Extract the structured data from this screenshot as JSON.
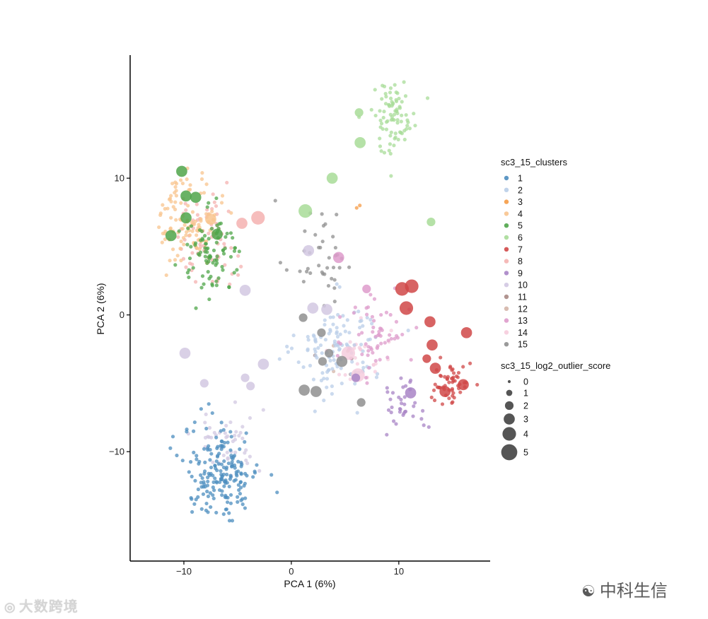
{
  "chart_data": {
    "type": "scatter",
    "xlabel": "PCA 1 (6%)",
    "ylabel": "PCA 2 (6%)",
    "xlim": [
      -15,
      18.5
    ],
    "ylim": [
      -18,
      19
    ],
    "x_ticks": [
      -10,
      0,
      10
    ],
    "x_tick_labels": [
      "−10",
      "0",
      "10"
    ],
    "y_ticks": [
      -10,
      0,
      10
    ],
    "y_tick_labels": [
      "−10",
      "0",
      "10"
    ],
    "grid": false,
    "legend_position": "right",
    "color_legend_title": "sc3_15_clusters",
    "size_legend_title": "sc3_15_log2_outlier_score",
    "size_legend_values": [
      "0",
      "1",
      "2",
      "3",
      "4",
      "5"
    ],
    "clusters": [
      {
        "name": "1",
        "color": "#4C8DBF",
        "center": [
          -6.5,
          -11.5
        ],
        "spread": [
          3.2,
          3.0
        ],
        "n": 190
      },
      {
        "name": "2",
        "color": "#B9CEE8",
        "center": [
          4.5,
          -2.5
        ],
        "spread": [
          3.6,
          3.2
        ],
        "n": 120
      },
      {
        "name": "3",
        "color": "#F59B45",
        "center": [
          6.0,
          8.0
        ],
        "spread": [
          0.4,
          0.4
        ],
        "n": 2
      },
      {
        "name": "4",
        "color": "#F8C48E",
        "center": [
          -9.5,
          7.0
        ],
        "spread": [
          2.5,
          3.0
        ],
        "n": 110
      },
      {
        "name": "5",
        "color": "#4FA54A",
        "center": [
          -7.5,
          4.5
        ],
        "spread": [
          2.6,
          2.6
        ],
        "n": 90
      },
      {
        "name": "6",
        "color": "#A8DC98",
        "center": [
          9.5,
          14.5
        ],
        "spread": [
          2.0,
          2.4
        ],
        "n": 85
      },
      {
        "name": "7",
        "color": "#D04848",
        "center": [
          15.0,
          -5.0
        ],
        "spread": [
          1.6,
          1.4
        ],
        "n": 55
      },
      {
        "name": "8",
        "color": "#F4B2B0",
        "center": [
          -8.0,
          5.5
        ],
        "spread": [
          2.6,
          3.0
        ],
        "n": 70
      },
      {
        "name": "9",
        "color": "#A884C6",
        "center": [
          10.5,
          -6.5
        ],
        "spread": [
          2.0,
          1.8
        ],
        "n": 35
      },
      {
        "name": "10",
        "color": "#D2C8E2",
        "center": [
          -6.0,
          -9.0
        ],
        "spread": [
          3.0,
          2.4
        ],
        "n": 45
      },
      {
        "name": "11",
        "color": "#A88884",
        "center": [
          4.0,
          -3.5
        ],
        "spread": [
          1.5,
          1.5
        ],
        "n": 3
      },
      {
        "name": "12",
        "color": "#D4B5A8",
        "center": [
          4.0,
          -3.0
        ],
        "spread": [
          1.5,
          1.5
        ],
        "n": 3
      },
      {
        "name": "13",
        "color": "#DE9BCB",
        "center": [
          8.0,
          -1.5
        ],
        "spread": [
          2.6,
          3.2
        ],
        "n": 60
      },
      {
        "name": "14",
        "color": "#F6CCDD",
        "center": [
          6.5,
          -3.0
        ],
        "spread": [
          2.5,
          2.0
        ],
        "n": 25
      },
      {
        "name": "15",
        "color": "#8F8F8F",
        "center": [
          2.5,
          4.5
        ],
        "spread": [
          3.0,
          3.6
        ],
        "n": 40
      }
    ],
    "outliers": [
      {
        "cluster": "5",
        "x": -10.2,
        "y": 10.5,
        "score": 3
      },
      {
        "cluster": "5",
        "x": -9.8,
        "y": 8.7,
        "score": 3
      },
      {
        "cluster": "5",
        "x": -8.9,
        "y": 8.6,
        "score": 3
      },
      {
        "cluster": "5",
        "x": -9.8,
        "y": 7.1,
        "score": 3
      },
      {
        "cluster": "5",
        "x": -11.2,
        "y": 5.8,
        "score": 3
      },
      {
        "cluster": "5",
        "x": -6.9,
        "y": 5.9,
        "score": 3
      },
      {
        "cluster": "4",
        "x": -7.5,
        "y": 7.0,
        "score": 3
      },
      {
        "cluster": "8",
        "x": -4.6,
        "y": 6.7,
        "score": 3
      },
      {
        "cluster": "8",
        "x": -3.1,
        "y": 7.1,
        "score": 4
      },
      {
        "cluster": "6",
        "x": 6.3,
        "y": 14.8,
        "score": 2
      },
      {
        "cluster": "6",
        "x": 6.4,
        "y": 12.6,
        "score": 3
      },
      {
        "cluster": "6",
        "x": 3.8,
        "y": 10.0,
        "score": 3
      },
      {
        "cluster": "6",
        "x": 1.3,
        "y": 7.6,
        "score": 4
      },
      {
        "cluster": "6",
        "x": 13.0,
        "y": 6.8,
        "score": 2
      },
      {
        "cluster": "7",
        "x": 10.3,
        "y": 1.9,
        "score": 4
      },
      {
        "cluster": "7",
        "x": 11.2,
        "y": 2.1,
        "score": 4
      },
      {
        "cluster": "7",
        "x": 10.7,
        "y": 0.5,
        "score": 4
      },
      {
        "cluster": "7",
        "x": 12.9,
        "y": -0.5,
        "score": 3
      },
      {
        "cluster": "7",
        "x": 16.3,
        "y": -1.3,
        "score": 3
      },
      {
        "cluster": "7",
        "x": 13.1,
        "y": -2.2,
        "score": 3
      },
      {
        "cluster": "7",
        "x": 12.6,
        "y": -3.2,
        "score": 2
      },
      {
        "cluster": "7",
        "x": 13.4,
        "y": -3.9,
        "score": 3
      },
      {
        "cluster": "7",
        "x": 14.3,
        "y": -5.6,
        "score": 3
      },
      {
        "cluster": "7",
        "x": 16.0,
        "y": -5.1,
        "score": 3
      },
      {
        "cluster": "10",
        "x": 1.6,
        "y": 4.7,
        "score": 3
      },
      {
        "cluster": "10",
        "x": -4.3,
        "y": 1.8,
        "score": 3
      },
      {
        "cluster": "10",
        "x": 2.0,
        "y": 0.5,
        "score": 3
      },
      {
        "cluster": "10",
        "x": 3.3,
        "y": 0.4,
        "score": 3
      },
      {
        "cluster": "10",
        "x": -9.9,
        "y": -2.8,
        "score": 3
      },
      {
        "cluster": "10",
        "x": -2.6,
        "y": -3.6,
        "score": 3
      },
      {
        "cluster": "10",
        "x": -4.3,
        "y": -4.6,
        "score": 2
      },
      {
        "cluster": "10",
        "x": -8.1,
        "y": -5.0,
        "score": 2
      },
      {
        "cluster": "10",
        "x": -3.8,
        "y": -5.2,
        "score": 2
      },
      {
        "cluster": "13",
        "x": 4.4,
        "y": 4.2,
        "score": 3
      },
      {
        "cluster": "13",
        "x": 7.0,
        "y": 1.9,
        "score": 2
      },
      {
        "cluster": "14",
        "x": 5.3,
        "y": -2.8,
        "score": 4
      },
      {
        "cluster": "14",
        "x": 6.2,
        "y": -4.4,
        "score": 4
      },
      {
        "cluster": "9",
        "x": 11.1,
        "y": -5.7,
        "score": 3
      },
      {
        "cluster": "9",
        "x": 6.0,
        "y": -4.6,
        "score": 2
      },
      {
        "cluster": "15",
        "x": 1.1,
        "y": -0.2,
        "score": 2
      },
      {
        "cluster": "15",
        "x": 2.8,
        "y": -1.3,
        "score": 2
      },
      {
        "cluster": "15",
        "x": 3.5,
        "y": -2.8,
        "score": 2
      },
      {
        "cluster": "15",
        "x": 2.9,
        "y": -3.4,
        "score": 2
      },
      {
        "cluster": "15",
        "x": 4.7,
        "y": -3.4,
        "score": 3
      },
      {
        "cluster": "15",
        "x": 1.2,
        "y": -5.5,
        "score": 3
      },
      {
        "cluster": "15",
        "x": 2.3,
        "y": -5.6,
        "score": 3
      },
      {
        "cluster": "15",
        "x": 6.5,
        "y": -6.4,
        "score": 2
      }
    ]
  },
  "watermarks": {
    "left": "大数跨境",
    "left_icon": "weibo-icon",
    "right": "中科生信",
    "right_icon": "wechat-icon"
  }
}
